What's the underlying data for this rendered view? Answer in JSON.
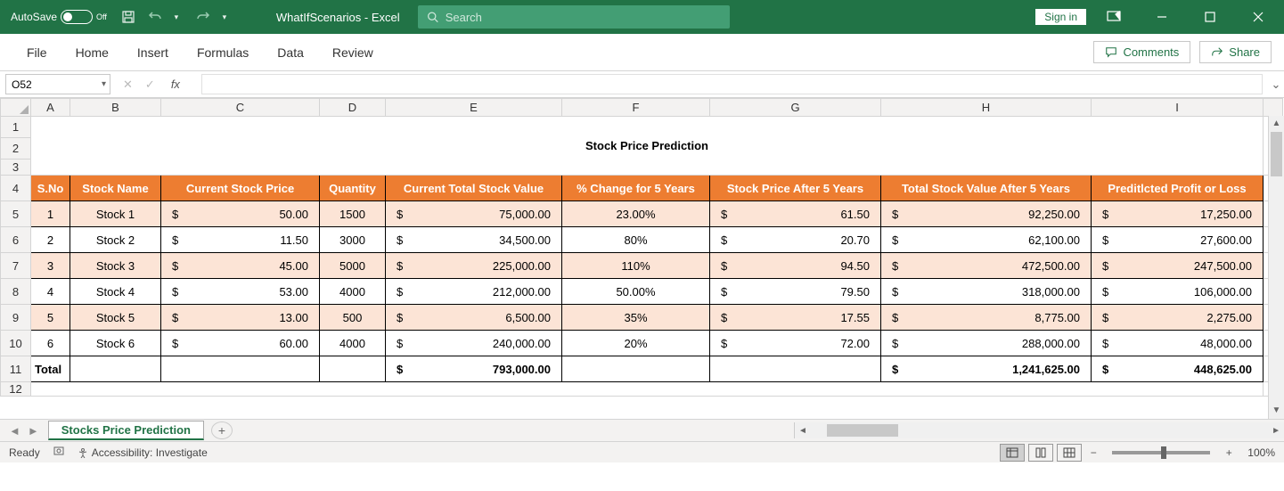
{
  "title_bar": {
    "autosave": "AutoSave",
    "autosave_state": "Off",
    "doc_name": "WhatIfScenarios  -  Excel",
    "search_placeholder": "Search",
    "signin": "Sign in"
  },
  "ribbon": {
    "tabs": [
      "File",
      "Home",
      "Insert",
      "Formulas",
      "Data",
      "Review"
    ],
    "comments_btn": "Comments",
    "share_btn": "Share"
  },
  "formula_bar": {
    "name_box": "O52"
  },
  "columns": {
    "letters": [
      "A",
      "B",
      "C",
      "D",
      "E",
      "F",
      "G",
      "H",
      "I"
    ],
    "widths": [
      44,
      102,
      178,
      74,
      198,
      166,
      192,
      236,
      193
    ]
  },
  "rows": [
    "1",
    "2",
    "3",
    "4",
    "5",
    "6",
    "7",
    "8",
    "9",
    "10",
    "11",
    "12"
  ],
  "sheet_title": "Stock Price Prediction",
  "headers": [
    "S.No",
    "Stock Name",
    "Current Stock Price",
    "Quantity",
    "Current Total Stock Value",
    "% Change for 5 Years",
    "Stock Price After 5 Years",
    "Total Stock Value After 5 Years",
    "Preditlcted Profit or Loss"
  ],
  "data": [
    {
      "sno": "1",
      "name": "Stock 1",
      "price": "50.00",
      "qty": "1500",
      "total": "75,000.00",
      "pct": "23.00%",
      "after": "61.50",
      "tval": "92,250.00",
      "pl": "17,250.00",
      "alt": true
    },
    {
      "sno": "2",
      "name": "Stock 2",
      "price": "11.50",
      "qty": "3000",
      "total": "34,500.00",
      "pct": "80%",
      "after": "20.70",
      "tval": "62,100.00",
      "pl": "27,600.00",
      "alt": false
    },
    {
      "sno": "3",
      "name": "Stock 3",
      "price": "45.00",
      "qty": "5000",
      "total": "225,000.00",
      "pct": "110%",
      "after": "94.50",
      "tval": "472,500.00",
      "pl": "247,500.00",
      "alt": true
    },
    {
      "sno": "4",
      "name": "Stock 4",
      "price": "53.00",
      "qty": "4000",
      "total": "212,000.00",
      "pct": "50.00%",
      "after": "79.50",
      "tval": "318,000.00",
      "pl": "106,000.00",
      "alt": false
    },
    {
      "sno": "5",
      "name": "Stock 5",
      "price": "13.00",
      "qty": "500",
      "total": "6,500.00",
      "pct": "35%",
      "after": "17.55",
      "tval": "8,775.00",
      "pl": "2,275.00",
      "alt": true
    },
    {
      "sno": "6",
      "name": "Stock 6",
      "price": "60.00",
      "qty": "4000",
      "total": "240,000.00",
      "pct": "20%",
      "after": "72.00",
      "tval": "288,000.00",
      "pl": "48,000.00",
      "alt": false
    }
  ],
  "totals": {
    "label": "Total",
    "total": "793,000.00",
    "tval": "1,241,625.00",
    "pl": "448,625.00"
  },
  "sheet_tab": "Stocks Price Prediction",
  "status": {
    "ready": "Ready",
    "access": "Accessibility: Investigate",
    "zoom": "100%"
  }
}
